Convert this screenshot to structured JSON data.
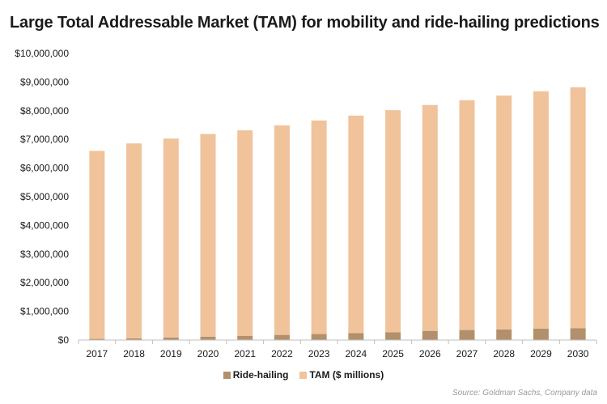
{
  "title": "Large Total Addressable Market (TAM) for mobility and ride-hailing predictions",
  "source": "Source: Goldman Sachs, Company data",
  "colors": {
    "tam": "#F0C39B",
    "ride_hailing": "#B3906C",
    "axis": "#bfbfbf"
  },
  "chart_data": {
    "type": "bar",
    "stacked": true,
    "title": "Large Total Addressable Market (TAM) for mobility and ride-hailing predictions",
    "xlabel": "",
    "ylabel": "",
    "categories": [
      "2017",
      "2018",
      "2019",
      "2020",
      "2021",
      "2022",
      "2023",
      "2024",
      "2025",
      "2026",
      "2027",
      "2028",
      "2029",
      "2030"
    ],
    "ylim": [
      0,
      10000000
    ],
    "yticks": [
      0,
      1000000,
      2000000,
      3000000,
      4000000,
      5000000,
      6000000,
      7000000,
      8000000,
      9000000,
      10000000
    ],
    "ytick_labels": [
      "$0",
      "$1,000,000",
      "$2,000,000",
      "$3,000,000",
      "$4,000,000",
      "$5,000,000",
      "$6,000,000",
      "$7,000,000",
      "$8,000,000",
      "$9,000,000",
      "$10,000,000"
    ],
    "grid": false,
    "legend": "bottom",
    "series": [
      {
        "name": "Ride-hailing",
        "values": [
          40000,
          60000,
          90000,
          120000,
          150000,
          180000,
          210000,
          240000,
          270000,
          320000,
          350000,
          370000,
          400000,
          410000
        ]
      },
      {
        "name": "TAM ($ millions)",
        "values": [
          6560000,
          6800000,
          6940000,
          7070000,
          7170000,
          7310000,
          7450000,
          7590000,
          7750000,
          7880000,
          8020000,
          8160000,
          8280000,
          8410000
        ]
      }
    ]
  }
}
